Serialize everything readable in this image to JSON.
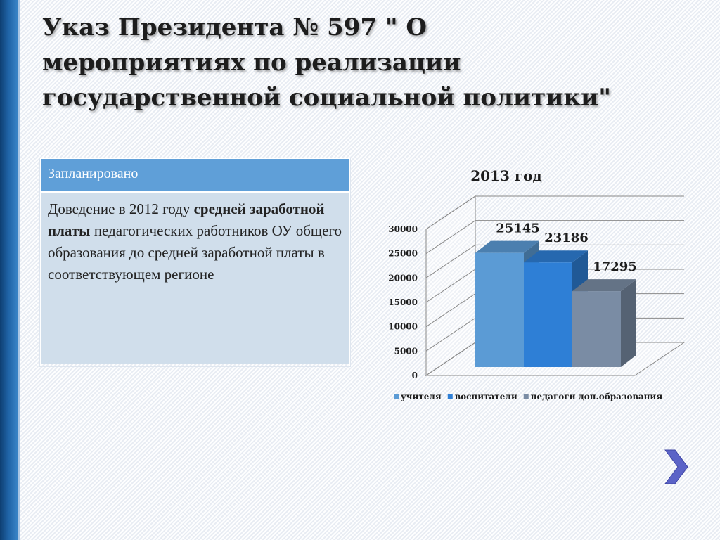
{
  "title": "Указ Президента № 597 \" О\nмероприятиях по реализации\nгосударственной социальной политики\"",
  "plan": {
    "header": "Запланировано",
    "text_1": "Доведение в 2012 году ",
    "text_bold": "средней заработной платы",
    "text_2": " педагогических работников ОУ общего образования до средней заработной платы в соответствующем регионе"
  },
  "chart_data": {
    "type": "bar",
    "title": "2013 год",
    "categories": [
      ""
    ],
    "series": [
      {
        "name": "учителя",
        "values": [
          25145
        ],
        "color": "#5b9bd5",
        "data_label": "25145"
      },
      {
        "name": "воспитатели",
        "values": [
          23186
        ],
        "color": "#2e7fd6",
        "data_label": "23186"
      },
      {
        "name": "педагоги доп.образования",
        "values": [
          17295
        ],
        "color": "#7a8ca4",
        "data_label": "17295"
      }
    ],
    "ylim": [
      0,
      30000
    ],
    "y_ticks": [
      0,
      5000,
      10000,
      15000,
      20000,
      25000,
      30000
    ],
    "y_tick_labels": [
      "0",
      "5000",
      "10000",
      "15000",
      "20000",
      "25000",
      "30000"
    ],
    "grid": true,
    "three_d": true,
    "legend_position": "bottom"
  },
  "nav": {
    "next_icon": "chevron-right-icon"
  }
}
